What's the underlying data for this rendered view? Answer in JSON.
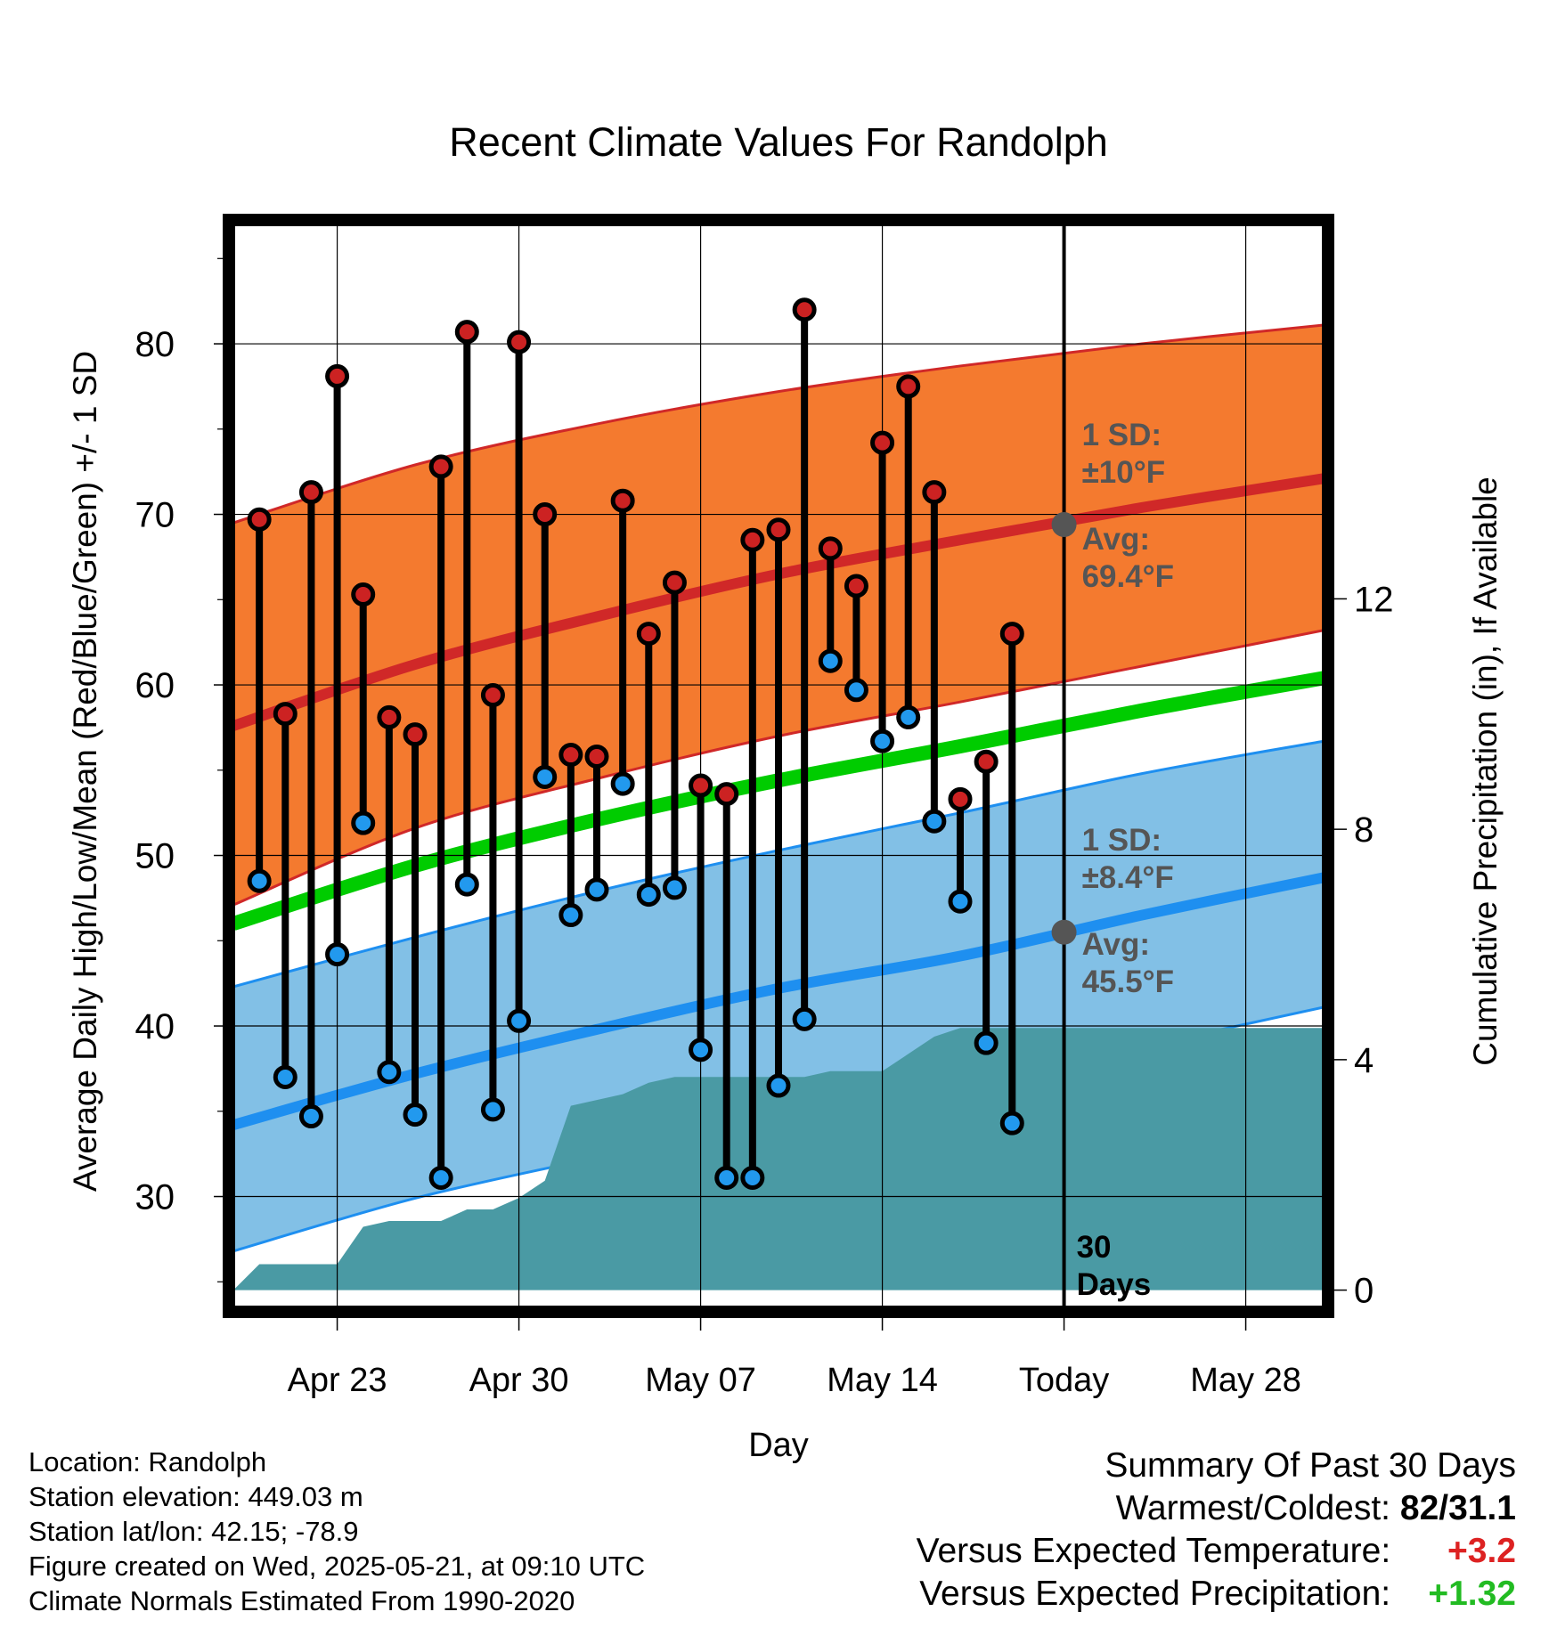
{
  "chart_data": {
    "type": "line",
    "title": "Recent Climate Values For Randolph",
    "xlabel": "Day",
    "ylabel": "Average Daily High/Low/Mean (Red/Blue/Green) +/- 1 SD",
    "y2label": "Cumulative Precipitation (in), If Available",
    "x_tick_labels": [
      "Apr 23",
      "Apr 30",
      "May 07",
      "May 14",
      "Today",
      "May 28"
    ],
    "x_tick_dates": [
      "2025-04-23",
      "2025-04-30",
      "2025-05-07",
      "2025-05-14",
      "2025-05-21",
      "2025-05-28"
    ],
    "xlim": [
      "2025-04-19",
      "2025-05-31"
    ],
    "ylim": [
      23.5,
      87
    ],
    "y_ticks": [
      30,
      40,
      50,
      60,
      70,
      80
    ],
    "y2lim": [
      -0.3,
      18.5
    ],
    "y2_ticks": [
      0,
      4,
      8,
      12
    ],
    "today": "2025-05-21",
    "days": [
      "2025-04-20",
      "2025-04-21",
      "2025-04-22",
      "2025-04-23",
      "2025-04-24",
      "2025-04-25",
      "2025-04-26",
      "2025-04-27",
      "2025-04-28",
      "2025-04-29",
      "2025-04-30",
      "2025-05-01",
      "2025-05-02",
      "2025-05-03",
      "2025-05-04",
      "2025-05-05",
      "2025-05-06",
      "2025-05-07",
      "2025-05-08",
      "2025-05-09",
      "2025-05-10",
      "2025-05-11",
      "2025-05-12",
      "2025-05-13",
      "2025-05-14",
      "2025-05-15",
      "2025-05-16",
      "2025-05-17",
      "2025-05-18",
      "2025-05-19",
      "2025-05-20"
    ],
    "series": [
      {
        "name": "High",
        "color": "#cc2222",
        "values": [
          69.7,
          58.3,
          71.3,
          78.1,
          65.3,
          58.1,
          57.1,
          72.8,
          80.7,
          59.4,
          80.1,
          70.0,
          55.9,
          55.8,
          70.8,
          63.0,
          66.0,
          54.1,
          53.6,
          68.5,
          69.1,
          82.0,
          68.0,
          65.8,
          74.2,
          77.5,
          71.3,
          53.3,
          55.5,
          63.0,
          null
        ]
      },
      {
        "name": "Low",
        "color": "#2299ee",
        "values": [
          48.5,
          37.0,
          34.7,
          44.2,
          51.9,
          37.3,
          34.8,
          31.1,
          48.3,
          35.1,
          40.3,
          54.6,
          46.5,
          48.0,
          54.2,
          47.7,
          48.1,
          38.6,
          31.1,
          31.1,
          36.5,
          40.4,
          61.4,
          59.7,
          56.7,
          58.1,
          52.0,
          47.3,
          39.0,
          34.3,
          null
        ]
      }
    ],
    "normals": {
      "dates": [
        "2025-04-19",
        "2025-04-26",
        "2025-05-03",
        "2025-05-10",
        "2025-05-17",
        "2025-05-24",
        "2025-05-31"
      ],
      "high_mean": [
        57.6,
        61.2,
        64.0,
        66.5,
        68.5,
        70.4,
        72.1
      ],
      "high_minus_sd": [
        47.1,
        51.6,
        54.5,
        57.0,
        59.0,
        61.1,
        63.2
      ],
      "high_plus_sd": [
        69.5,
        72.9,
        75.3,
        77.2,
        78.7,
        80.0,
        81.1
      ],
      "low_mean": [
        34.2,
        37.2,
        39.8,
        42.2,
        44.1,
        46.5,
        48.7
      ],
      "low_minus_sd": [
        26.8,
        29.9,
        32.3,
        34.7,
        36.6,
        38.8,
        41.1
      ],
      "low_plus_sd": [
        42.3,
        45.2,
        47.9,
        50.3,
        52.5,
        54.8,
        56.7
      ],
      "avg_mean": [
        46.0,
        49.4,
        52.1,
        54.4,
        56.4,
        58.5,
        60.4
      ]
    },
    "precip_cumulative": {
      "dates": [
        "2025-04-19",
        "2025-04-20",
        "2025-04-21",
        "2025-04-22",
        "2025-04-23",
        "2025-04-24",
        "2025-04-25",
        "2025-04-26",
        "2025-04-27",
        "2025-04-28",
        "2025-04-29",
        "2025-04-30",
        "2025-05-01",
        "2025-05-02",
        "2025-05-03",
        "2025-05-04",
        "2025-05-05",
        "2025-05-06",
        "2025-05-07",
        "2025-05-08",
        "2025-05-09",
        "2025-05-10",
        "2025-05-11",
        "2025-05-12",
        "2025-05-13",
        "2025-05-14",
        "2025-05-15",
        "2025-05-16",
        "2025-05-17",
        "2025-05-18",
        "2025-05-19",
        "2025-05-20",
        "2025-05-31"
      ],
      "values": [
        0.0,
        0.45,
        0.45,
        0.45,
        0.45,
        1.1,
        1.2,
        1.2,
        1.2,
        1.4,
        1.4,
        1.6,
        1.9,
        3.2,
        3.3,
        3.4,
        3.6,
        3.7,
        3.7,
        3.7,
        3.7,
        3.7,
        3.7,
        3.8,
        3.8,
        3.8,
        4.1,
        4.4,
        4.55,
        4.55,
        4.55,
        4.55,
        4.55
      ]
    },
    "period_label": [
      "30",
      "Days"
    ],
    "high_annotation": {
      "sd_label": "1 SD:",
      "sd_value": "±10",
      "avg_label": "Avg:",
      "avg_value": "69.4",
      "avg": 69.4,
      "unit": "°F"
    },
    "low_annotation": {
      "sd_label": "1 SD:",
      "sd_value": "±8.4",
      "avg_label": "Avg:",
      "avg_value": "45.5",
      "avg": 45.5,
      "unit": "°F"
    },
    "colors": {
      "high_band": "#f47a2f",
      "high_line": "#d02828",
      "low_band": "#82c0e6",
      "low_line": "#1e8ff0",
      "mean_line": "#00cc00",
      "precip": "#4a9aa4",
      "high_marker": "#cc2222",
      "low_marker": "#2299ee",
      "annotation": "#555555",
      "today_point": "#555555"
    }
  },
  "footer": {
    "location": "Location: Randolph",
    "elevation": "Station elevation: 449.03 m",
    "latlon": "Station lat/lon: 42.15; -78.9",
    "created": "Figure created on Wed, 2025-05-21, at 09:10 UTC",
    "normals": "Climate Normals Estimated From 1990-2020"
  },
  "summary": {
    "title": "Summary Of Past 30 Days",
    "warmest_label": "Warmest/Coldest:",
    "warmest_value": "82/31.1",
    "temp_label": "Versus Expected Temperature:",
    "temp_value": "+3.2",
    "temp_color": "#dd2222",
    "precip_label": "Versus Expected Precipitation:",
    "precip_value": "+1.32",
    "precip_color": "#22bb22"
  }
}
